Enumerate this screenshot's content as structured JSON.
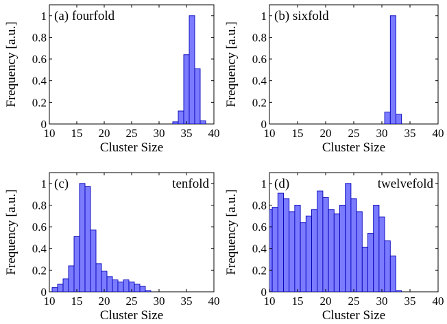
{
  "chart_data": [
    {
      "type": "bar",
      "panel_label": "(a)",
      "title": "fourfold",
      "title_position": "top-left",
      "xlabel": "Cluster Size",
      "ylabel": "Frequency [a.u.]",
      "xlim": [
        10,
        40
      ],
      "ylim": [
        0,
        1.1
      ],
      "xticks": [
        10,
        15,
        20,
        25,
        30,
        35,
        40
      ],
      "yticks": [
        0,
        0.2,
        0.4,
        0.6,
        0.8,
        1
      ],
      "ytick_labels": [
        "0",
        "0.2",
        "0.4",
        "0.6",
        "0.8",
        "1"
      ],
      "x": [
        33,
        34,
        35,
        36,
        37,
        38
      ],
      "values": [
        0.02,
        0.12,
        0.64,
        1.0,
        0.51,
        0.03
      ]
    },
    {
      "type": "bar",
      "panel_label": "(b)",
      "title": "sixfold",
      "title_position": "top-left",
      "xlabel": "Cluster Size",
      "ylabel": "Frequency [a.u.]",
      "xlim": [
        10,
        40
      ],
      "ylim": [
        0,
        1.1
      ],
      "xticks": [
        10,
        15,
        20,
        25,
        30,
        35,
        40
      ],
      "yticks": [
        0,
        0.2,
        0.4,
        0.6,
        0.8,
        1
      ],
      "ytick_labels": [
        "0",
        "0.2",
        "0.4",
        "0.6",
        "0.8",
        "1"
      ],
      "x": [
        31,
        32,
        33
      ],
      "values": [
        0.11,
        1.0,
        0.09
      ]
    },
    {
      "type": "bar",
      "panel_label": "(c)",
      "title": "tenfold",
      "title_position": "top-right",
      "xlabel": "Cluster Size",
      "ylabel": "Frequency [a.u.]",
      "xlim": [
        10,
        40
      ],
      "ylim": [
        0,
        1.1
      ],
      "xticks": [
        10,
        15,
        20,
        25,
        30,
        35,
        40
      ],
      "yticks": [
        0,
        0.2,
        0.4,
        0.6,
        0.8,
        1
      ],
      "ytick_labels": [
        "0",
        "0.2",
        "0.4",
        "0.6",
        "0.8",
        "1"
      ],
      "x": [
        11,
        12,
        13,
        14,
        15,
        16,
        17,
        18,
        19,
        20,
        21,
        22,
        23,
        24,
        25,
        26,
        27,
        28
      ],
      "values": [
        0.04,
        0.07,
        0.12,
        0.24,
        0.51,
        1.0,
        0.97,
        0.57,
        0.26,
        0.19,
        0.14,
        0.11,
        0.09,
        0.11,
        0.09,
        0.07,
        0.05,
        0.01
      ]
    },
    {
      "type": "bar",
      "panel_label": "(d)",
      "title": "twelvefold",
      "title_position": "top-right",
      "xlabel": "Cluster Size",
      "ylabel": "Frequency [a.u.]",
      "xlim": [
        10,
        40
      ],
      "ylim": [
        0,
        1.1
      ],
      "xticks": [
        10,
        15,
        20,
        25,
        30,
        35,
        40
      ],
      "yticks": [
        0,
        0.2,
        0.4,
        0.6,
        0.8,
        1
      ],
      "ytick_labels": [
        "0",
        "0.2",
        "0.4",
        "0.6",
        "0.8",
        "1"
      ],
      "x": [
        10,
        11,
        12,
        13,
        14,
        15,
        16,
        17,
        18,
        19,
        20,
        21,
        22,
        23,
        24,
        25,
        26,
        27,
        28,
        29,
        30,
        31,
        32,
        33
      ],
      "values": [
        0.76,
        0.78,
        0.91,
        0.86,
        0.74,
        0.8,
        0.64,
        0.7,
        0.76,
        0.93,
        0.87,
        0.76,
        0.72,
        0.8,
        1.0,
        0.86,
        0.74,
        0.41,
        0.54,
        0.8,
        0.69,
        0.47,
        0.33,
        0.01
      ]
    }
  ],
  "colors": {
    "bar_fill": "#7b7bff",
    "bar_stroke": "#0000b8"
  }
}
